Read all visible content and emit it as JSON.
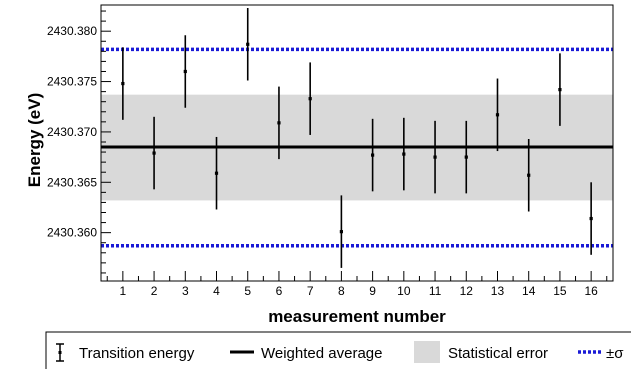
{
  "chart_data": {
    "type": "scatter",
    "title": "",
    "xlabel": "measurement number",
    "ylabel": "Energy (eV)",
    "xlim": [
      0.3,
      16.7
    ],
    "ylim": [
      2430.3552,
      2430.3826
    ],
    "x_ticks": [
      1,
      2,
      3,
      4,
      5,
      6,
      7,
      8,
      9,
      10,
      11,
      12,
      13,
      14,
      15,
      16
    ],
    "x_tick_labels": [
      "1",
      "2",
      "3",
      "4",
      "5",
      "6",
      "7",
      "8",
      "9",
      "10",
      "11",
      "12",
      "13",
      "14",
      "15",
      "16"
    ],
    "y_ticks": [
      2430.36,
      2430.365,
      2430.37,
      2430.375,
      2430.38
    ],
    "y_tick_labels": [
      "2430.360",
      "2430.365",
      "2430.370",
      "2430.375",
      "2430.380"
    ],
    "grid": false,
    "series": [
      {
        "name": "Transition energy",
        "x": [
          1,
          2,
          3,
          4,
          5,
          6,
          7,
          8,
          9,
          10,
          11,
          12,
          13,
          14,
          15,
          16
        ],
        "y": [
          2430.3748,
          2430.3679,
          2430.376,
          2430.3659,
          2430.3787,
          2430.3709,
          2430.3733,
          2430.3601,
          2430.3677,
          2430.3678,
          2430.3675,
          2430.3675,
          2430.3717,
          2430.3657,
          2430.3742,
          2430.3614
        ],
        "yerr": [
          0.0036,
          0.0036,
          0.0036,
          0.0036,
          0.0036,
          0.0036,
          0.0036,
          0.0036,
          0.0036,
          0.0036,
          0.0036,
          0.0036,
          0.0036,
          0.0036,
          0.0036,
          0.0036
        ]
      },
      {
        "name": "Weighted average",
        "value": 2430.3685
      },
      {
        "name": "Statistical error",
        "low": 2430.3632,
        "high": 2430.3737
      },
      {
        "name": "±σ",
        "low": 2430.3587,
        "high": 2430.3782
      }
    ],
    "legend": {
      "position": "bottom",
      "entries": [
        "Transition energy",
        "Weighted average",
        "Statistical error",
        "±σ"
      ]
    },
    "colors": {
      "points": "#000000",
      "average": "#000000",
      "band": "#d9d9d9",
      "sigma": "#1a1ad6"
    }
  }
}
